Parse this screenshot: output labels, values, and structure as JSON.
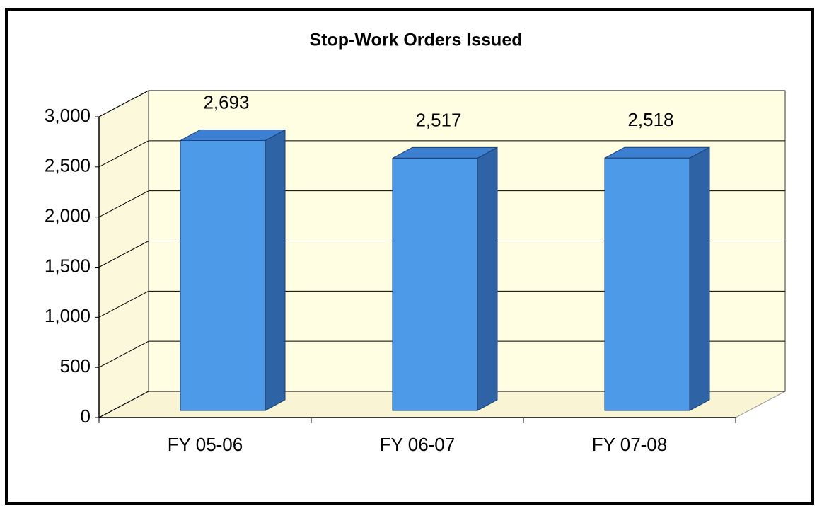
{
  "chart_data": {
    "type": "bar3d",
    "title": "Stop-Work Orders Issued",
    "categories": [
      "FY 05-06",
      "FY 06-07",
      "FY 07-08"
    ],
    "values": [
      2693,
      2517,
      2518
    ],
    "value_labels": [
      "2,693",
      "2,517",
      "2,518"
    ],
    "color": "#4d9ae8",
    "ylim": [
      0,
      3000
    ],
    "yticks": [
      0,
      500,
      {
        "value": 1000,
        "label": "1,000"
      },
      {
        "value": 1500,
        "label": "1,500"
      },
      {
        "value": 2000,
        "label": "2,000"
      },
      {
        "value": 2500,
        "label": "2,500"
      },
      {
        "value": 3000,
        "label": "3,000"
      }
    ],
    "grid": true
  }
}
